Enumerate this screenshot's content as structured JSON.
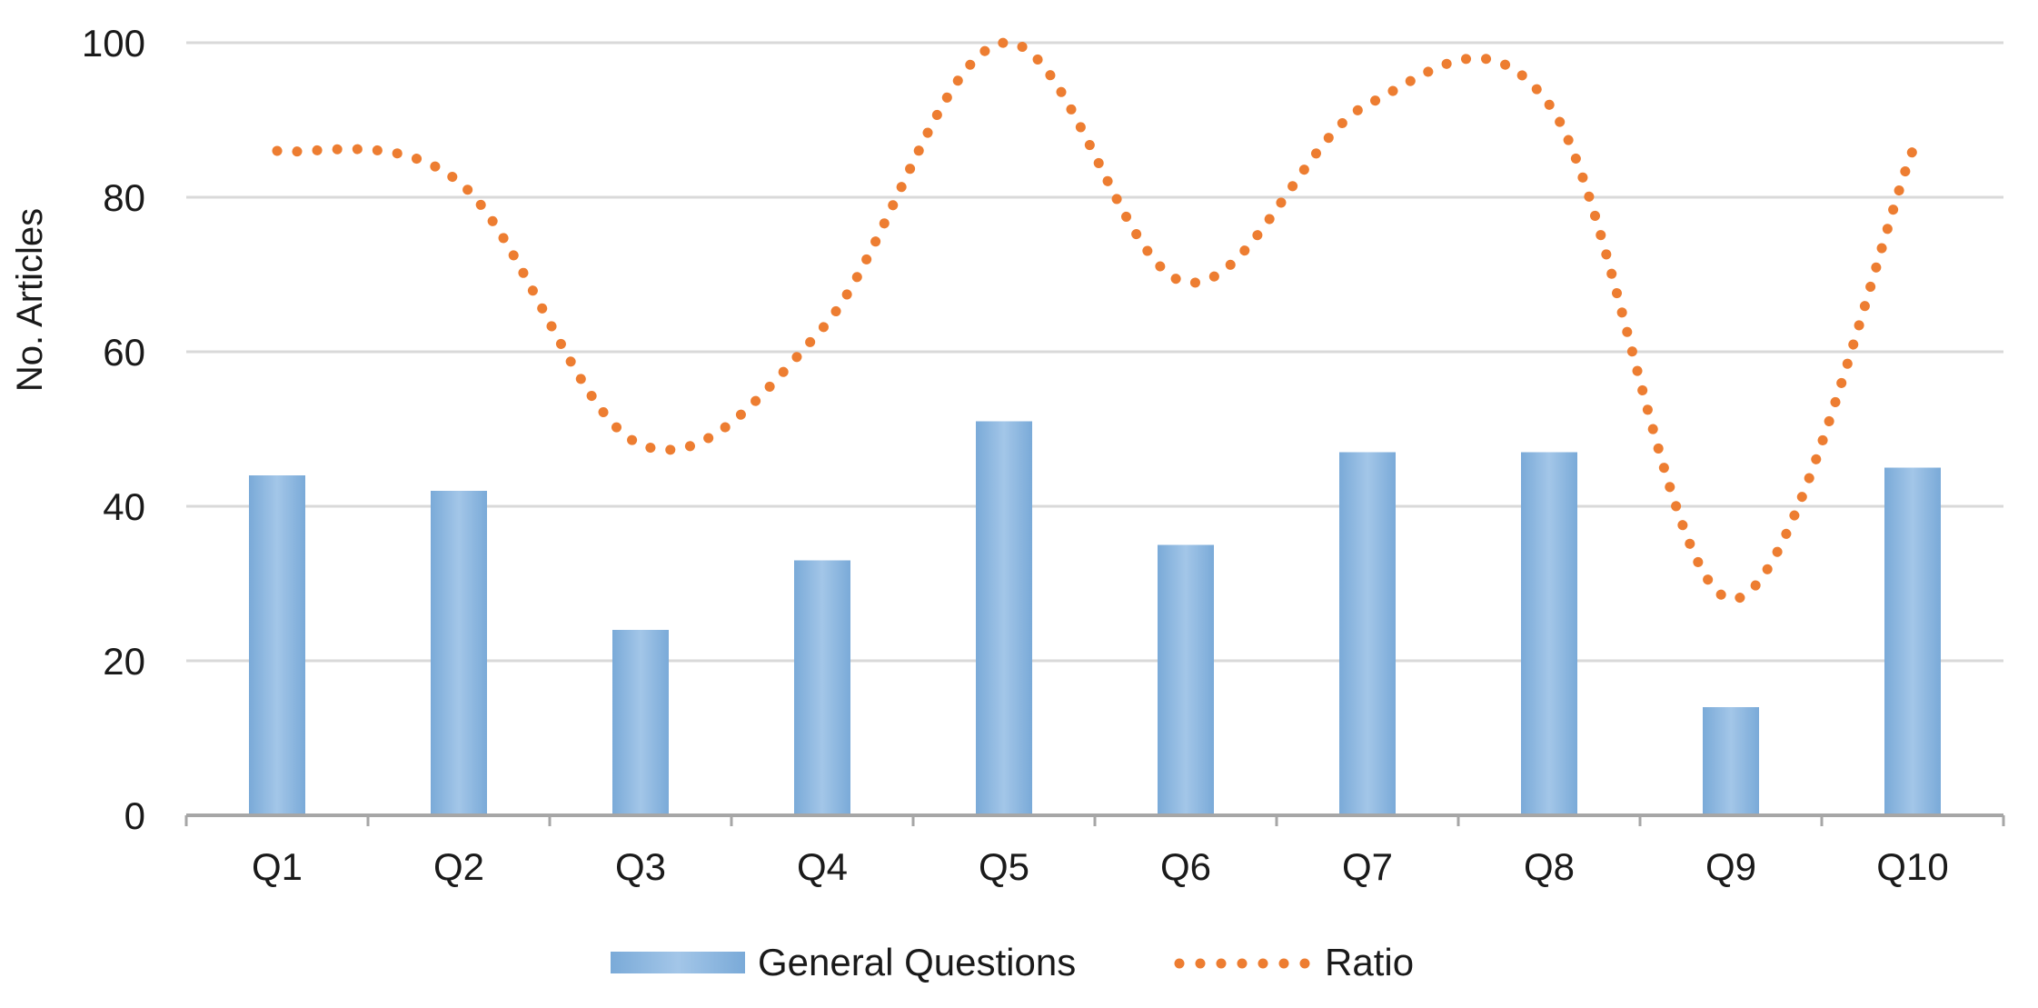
{
  "chart_data": {
    "type": "bar",
    "title": "",
    "xlabel": "",
    "ylabel": "No.  Articles",
    "ylim": [
      0,
      100
    ],
    "yticks": [
      0,
      20,
      40,
      60,
      80,
      100
    ],
    "grid": true,
    "legend_position": "bottom",
    "categories": [
      "Q1",
      "Q2",
      "Q3",
      "Q4",
      "Q5",
      "Q6",
      "Q7",
      "Q8",
      "Q9",
      "Q10"
    ],
    "series": [
      {
        "name": "General Questions",
        "type": "bar",
        "color": "#8fb8de",
        "values": [
          44,
          42,
          24,
          33,
          51,
          35,
          47,
          47,
          14,
          45
        ]
      },
      {
        "name": "Ratio",
        "type": "line",
        "style": "dotted",
        "color": "#ed7d31",
        "values": [
          86,
          82,
          48,
          63,
          100,
          69,
          92,
          92,
          28,
          86
        ]
      }
    ]
  }
}
